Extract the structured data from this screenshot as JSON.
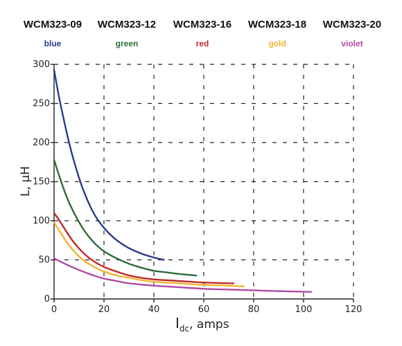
{
  "chart_data": {
    "type": "line",
    "xlabel_main": "I",
    "xlabel_sub": "dc",
    "xlabel_rest": ", amps",
    "ylabel": "L, µH",
    "xlim": [
      0,
      120
    ],
    "ylim": [
      0,
      300
    ],
    "x_ticks": [
      0,
      20,
      40,
      60,
      80,
      100,
      120
    ],
    "y_ticks": [
      0,
      50,
      100,
      150,
      200,
      250,
      300
    ],
    "grid": true,
    "legend_placement": "top",
    "series": [
      {
        "model": "WCM323-09",
        "name": "blue",
        "color": "#2b3a8c",
        "x": [
          0,
          2,
          4,
          6,
          8,
          10,
          12,
          15,
          18,
          22,
          26,
          30,
          35,
          40,
          44
        ],
        "y": [
          293,
          258,
          228,
          200,
          176,
          155,
          137,
          115,
          99,
          84,
          73,
          65,
          58,
          53,
          50
        ]
      },
      {
        "model": "WCM323-12",
        "name": "green",
        "color": "#2e6b3a",
        "x": [
          0,
          2,
          5,
          8,
          12,
          16,
          20,
          25,
          30,
          35,
          40,
          45,
          50,
          57
        ],
        "y": [
          178,
          158,
          131,
          110,
          88,
          72,
          61,
          52,
          45,
          40,
          36,
          34,
          32,
          30
        ]
      },
      {
        "model": "WCM323-16",
        "name": "red",
        "color": "#c0282a",
        "x": [
          0,
          2,
          5,
          8,
          12,
          16,
          20,
          25,
          30,
          35,
          40,
          50,
          60,
          72
        ],
        "y": [
          110,
          101,
          86,
          72,
          58,
          48,
          41,
          35,
          30,
          27,
          25,
          23,
          21,
          20
        ]
      },
      {
        "model": "WCM323-18",
        "name": "gold",
        "color": "#f2b431",
        "x": [
          0,
          2,
          5,
          8,
          12,
          16,
          20,
          25,
          30,
          35,
          40,
          50,
          60,
          70,
          76
        ],
        "y": [
          98,
          88,
          73,
          61,
          49,
          41,
          35,
          30,
          27,
          24,
          22,
          20,
          18,
          17,
          16
        ]
      },
      {
        "model": "WCM323-20",
        "name": "violet",
        "color": "#b04aa5",
        "x": [
          0,
          5,
          10,
          15,
          20,
          25,
          30,
          40,
          50,
          60,
          70,
          80,
          90,
          103
        ],
        "y": [
          52,
          44,
          37,
          31,
          26,
          23,
          20,
          17,
          15,
          13,
          12,
          11,
          10,
          9
        ]
      }
    ]
  }
}
